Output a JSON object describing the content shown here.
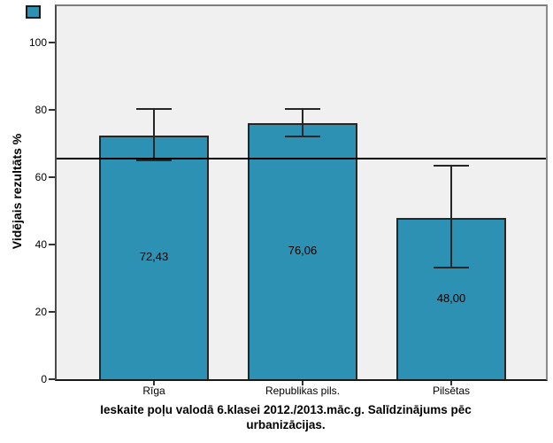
{
  "page": {
    "background": "#ffffff"
  },
  "legend_swatch": {
    "color": "#2c91b2"
  },
  "chart_data": {
    "type": "bar",
    "title": "Ieskaite poļu valodā 6.klasei 2012./2013.māc.g. Salīdzinājums pēc urbanizācijas.",
    "title_lines": [
      "Ieskaite poļu valodā 6.klasei 2012./2013.māc.g. Salīdzinājums pēc",
      "urbanizācijas."
    ],
    "xlabel": "",
    "ylabel": "Vidējais rezultāts %",
    "categories": [
      "Rīga",
      "Republikas pils.",
      "Pilsētas"
    ],
    "values": [
      72.43,
      76.06,
      48.0
    ],
    "value_labels": [
      "72,43",
      "76,06",
      "48,00"
    ],
    "error_bars": {
      "low": [
        64.9,
        72.2,
        33.1
      ],
      "high": [
        80.3,
        80.3,
        63.3
      ]
    },
    "reference_line_y": 65.6,
    "yticks": [
      0,
      20,
      40,
      60,
      80,
      100
    ],
    "ylim": [
      0,
      110
    ],
    "grid": false,
    "legend_position": "none",
    "colors": {
      "bar_fill": "#2c91b2",
      "bar_border": "#262626",
      "plot_background": "#f0f0f0",
      "error_bar": "#262626",
      "reference_line": "#000000",
      "axis_text": "#000000"
    }
  }
}
